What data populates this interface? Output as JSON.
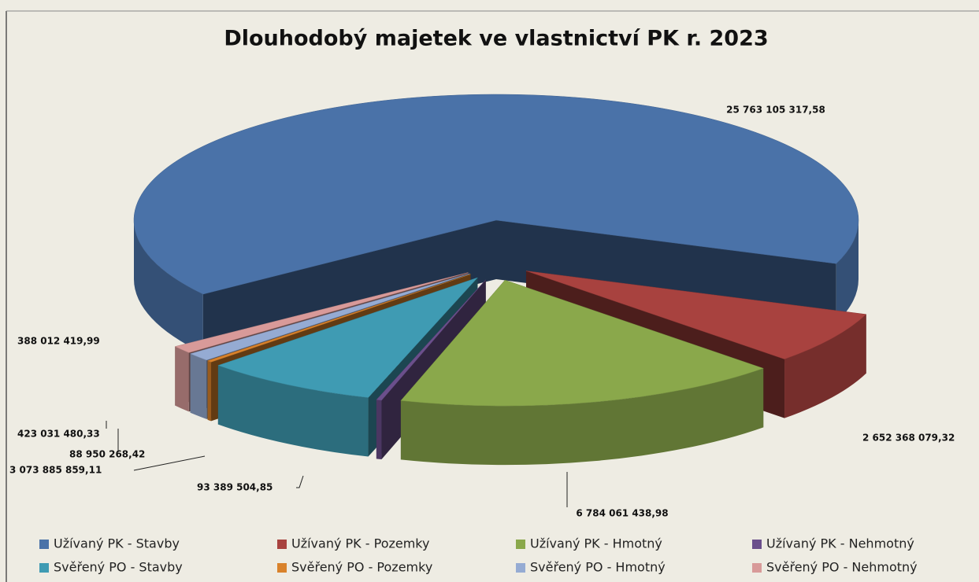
{
  "chart_data": {
    "type": "pie3d",
    "title": "Dlouhodobý majetek ve vlastnictví PK r. 2023",
    "categories": [
      "Užívaný PK - Stavby",
      "Užívaný PK - Pozemky",
      "Užívaný PK - Hmotný",
      "Užívaný PK - Nehmotný",
      "Svěřený PO - Stavby",
      "Svěřený PO - Pozemky",
      "Svěřený PO - Hmotný",
      "Svěřený PO - Nehmotný"
    ],
    "values": [
      25763105317.58,
      2652368079.32,
      6784061438.98,
      93389504.85,
      3073885859.11,
      88950268.42,
      423031480.33,
      388012419.99
    ],
    "value_labels": [
      "25 763 105 317,58",
      "2 652 368 079,32",
      "6 784 061 438,98",
      "93 389 504,85",
      "3 073 885 859,11",
      "88 950 268,42",
      "423 031 480,33",
      "388 012 419,99"
    ],
    "colors": [
      "#4a72a8",
      "#a8423f",
      "#8aa84b",
      "#6b4f8c",
      "#3f9bb3",
      "#d9822b",
      "#95abd3",
      "#d89a99"
    ]
  }
}
